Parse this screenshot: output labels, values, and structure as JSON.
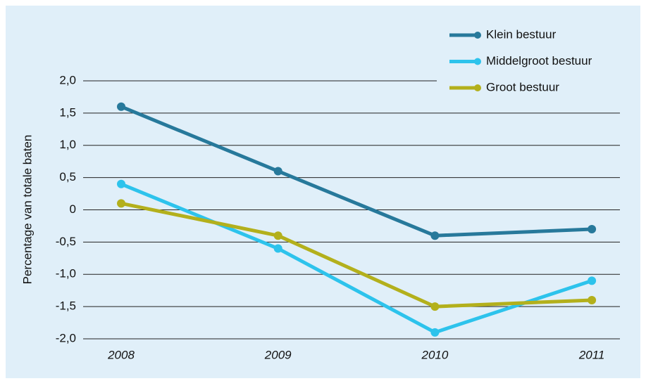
{
  "chart_data": {
    "type": "line",
    "y_label": "Percentage van totale baten",
    "categories": [
      "2008",
      "2009",
      "2010",
      "2011"
    ],
    "series": [
      {
        "name": "Klein bestuur",
        "color": "#27799b",
        "values": [
          1.6,
          0.6,
          -0.4,
          -0.3
        ]
      },
      {
        "name": "Middelgroot bestuur",
        "color": "#2dc3ec",
        "values": [
          0.4,
          -0.6,
          -1.9,
          -1.1
        ]
      },
      {
        "name": "Groot bestuur",
        "color": "#b3b01c",
        "values": [
          0.1,
          -0.4,
          -1.5,
          -1.4
        ]
      }
    ],
    "ylim": [
      -2,
      2
    ],
    "yticks": [
      {
        "value": -2,
        "label": "-2,0"
      },
      {
        "value": -1.5,
        "label": "-1,5"
      },
      {
        "value": -1,
        "label": "-1,0"
      },
      {
        "value": -0.5,
        "label": "-0,5"
      },
      0,
      {
        "value": 0.5,
        "label": "0,5"
      },
      {
        "value": 1,
        "label": "1,0"
      },
      {
        "value": 1.5,
        "label": "1,5"
      },
      {
        "value": 2,
        "label": "2,0"
      }
    ],
    "grid": true,
    "legend": "top-right"
  }
}
